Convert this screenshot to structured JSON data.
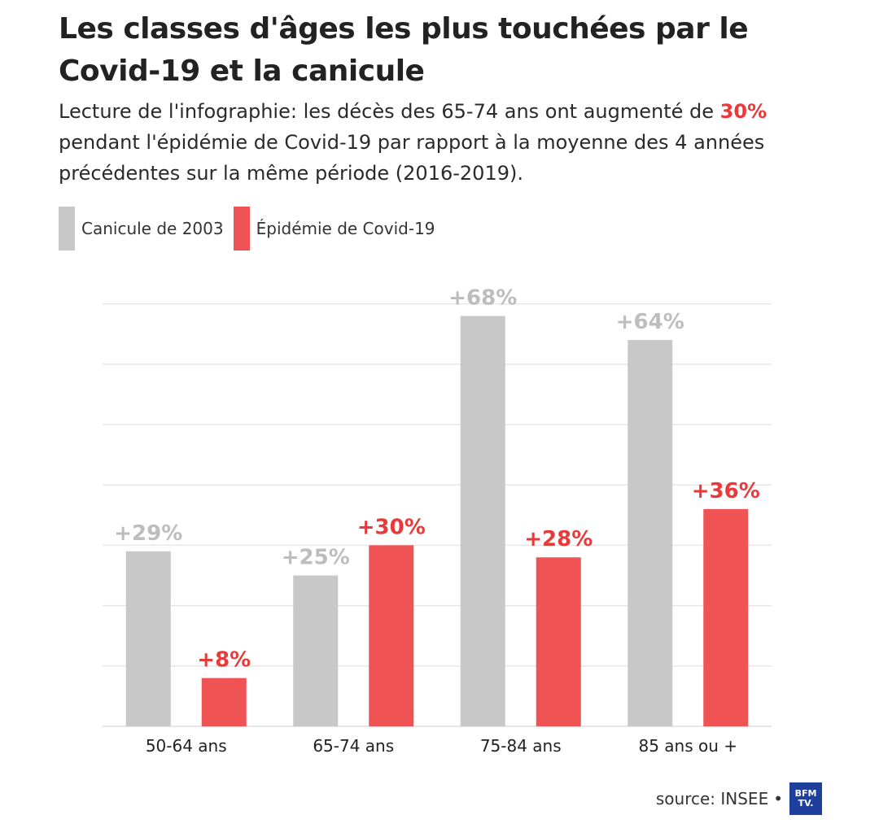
{
  "header": {
    "title": "Les classes d'âges les plus touchées par le Covid-19 et la canicule",
    "subtitle_before": "Lecture de l'infographie: les décès des 65-74 ans ont augmenté de ",
    "subtitle_highlight": "30%",
    "subtitle_after": " pendant l'épidémie de Covid-19 par rapport à la moyenne des 4 années précédentes sur la même période (2016-2019)."
  },
  "legend": {
    "items": [
      {
        "label": "Canicule de 2003",
        "color": "#c8c8c8"
      },
      {
        "label": "Épidémie de Covid-19",
        "color": "#f05353"
      }
    ]
  },
  "colors": {
    "canicule": "#c8c8c8",
    "canicule_label": "#bdbdbd",
    "covid": "#f05353",
    "covid_label": "#e83a3a",
    "grid": "#e6e6e6"
  },
  "chart_data": {
    "type": "bar",
    "title": "Les classes d'âges les plus touchées par le Covid-19 et la canicule",
    "categories": [
      "50-64 ans",
      "65-74 ans",
      "75-84 ans",
      "85 ans ou +"
    ],
    "series": [
      {
        "name": "Canicule de 2003",
        "values": [
          29,
          25,
          68,
          64
        ],
        "labels": [
          "+29%",
          "+25%",
          "+68%",
          "+64%"
        ]
      },
      {
        "name": "Épidémie de Covid-19",
        "values": [
          8,
          30,
          28,
          36
        ],
        "labels": [
          "+8%",
          "+30%",
          "+28%",
          "+36%"
        ]
      }
    ],
    "xlabel": "",
    "ylabel": "",
    "ylim": [
      0,
      70
    ],
    "grid": true
  },
  "footer": {
    "source": "source: INSEE",
    "separator": "•",
    "logo_text": "BFM TV."
  }
}
